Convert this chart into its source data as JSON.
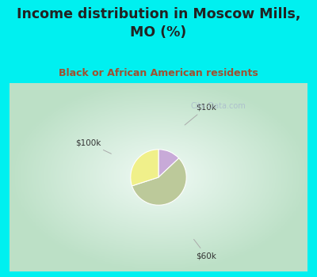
{
  "title": "Income distribution in Moscow Mills,\nMO (%)",
  "subtitle": "Black or African American residents",
  "slices": [
    {
      "label": "$10k",
      "value": 13,
      "color": "#c8aad8"
    },
    {
      "label": "$60k",
      "value": 57,
      "color": "#bcc99a"
    },
    {
      "label": "$100k",
      "value": 30,
      "color": "#f0f08a"
    }
  ],
  "bg_cyan": "#00f0f0",
  "title_color": "#222222",
  "subtitle_color": "#a05030",
  "annotation_color": "#333333",
  "watermark_color": "#aabbcc",
  "chart_bg_center": "#f0f8f0",
  "chart_bg_edge": "#c8e8d8"
}
